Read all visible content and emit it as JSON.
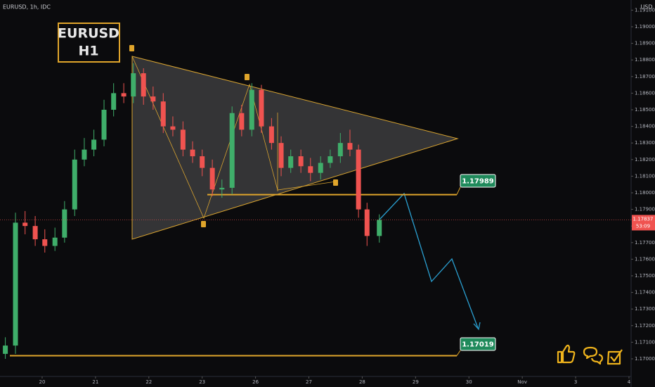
{
  "chart_data": {
    "type": "candlestick",
    "title": "EURUSD, 1h, IDC",
    "currency": "USD",
    "label_box": [
      "EURUSD",
      "H1"
    ],
    "countdown": "53:09",
    "up_color": "#3fae6a",
    "down_color": "#f05350",
    "xlim": [
      -0.79,
      11.04
    ],
    "ylim": [
      1.16894,
      1.19161
    ],
    "xticks": [
      {
        "value": 0,
        "label": "20"
      },
      {
        "value": 1,
        "label": "21"
      },
      {
        "value": 2,
        "label": "22"
      },
      {
        "value": 3,
        "label": "23"
      },
      {
        "value": 4,
        "label": "26"
      },
      {
        "value": 5,
        "label": "27"
      },
      {
        "value": 6,
        "label": "28"
      },
      {
        "value": 7,
        "label": "29"
      },
      {
        "value": 8,
        "label": "30"
      },
      {
        "value": 9,
        "label": "Nov"
      },
      {
        "value": 10,
        "label": "3"
      },
      {
        "value": 11,
        "label": "4"
      }
    ],
    "yticks": [
      {
        "value": 1.191,
        "label": "1.19100"
      },
      {
        "value": 1.19,
        "label": "1.19000"
      },
      {
        "value": 1.189,
        "label": "1.18900"
      },
      {
        "value": 1.188,
        "label": "1.18800"
      },
      {
        "value": 1.187,
        "label": "1.18700"
      },
      {
        "value": 1.186,
        "label": "1.18600"
      },
      {
        "value": 1.185,
        "label": "1.18500"
      },
      {
        "value": 1.184,
        "label": "1.18400"
      },
      {
        "value": 1.183,
        "label": "1.18300"
      },
      {
        "value": 1.182,
        "label": "1.18200"
      },
      {
        "value": 1.181,
        "label": "1.18100"
      },
      {
        "value": 1.18,
        "label": "1.18000"
      },
      {
        "value": 1.179,
        "label": "1.17900"
      },
      {
        "value": 1.178,
        "label": "1.17800"
      },
      {
        "value": 1.177,
        "label": "1.17700"
      },
      {
        "value": 1.176,
        "label": "1.17600"
      },
      {
        "value": 1.175,
        "label": "1.17500"
      },
      {
        "value": 1.174,
        "label": "1.17400"
      },
      {
        "value": 1.173,
        "label": "1.17300"
      },
      {
        "value": 1.172,
        "label": "1.17200"
      },
      {
        "value": 1.171,
        "label": "1.17100"
      },
      {
        "value": 1.17,
        "label": "1.17000"
      }
    ],
    "levels": [
      1.17989,
      1.17019
    ],
    "candles": {
      "x": [
        -0.69,
        -0.5,
        -0.32,
        -0.13,
        0.05,
        0.24,
        0.42,
        0.61,
        0.79,
        0.97,
        1.16,
        1.34,
        1.53,
        1.71,
        1.9,
        2.08,
        2.27,
        2.45,
        2.64,
        2.82,
        3.0,
        3.19,
        3.37,
        3.56,
        3.74,
        3.93,
        4.11,
        4.3,
        4.48,
        4.66,
        4.85,
        5.03,
        5.22,
        5.4,
        5.59,
        5.77,
        5.93,
        6.09,
        6.32
      ],
      "open": [
        1.1703,
        1.1708,
        1.1782,
        1.178,
        1.1772,
        1.1768,
        1.1773,
        1.179,
        1.182,
        1.1826,
        1.1832,
        1.185,
        1.186,
        1.1858,
        1.1872,
        1.1858,
        1.1855,
        1.184,
        1.1838,
        1.1826,
        1.1822,
        1.1815,
        1.1802,
        1.1803,
        1.1848,
        1.1838,
        1.1862,
        1.184,
        1.183,
        1.1815,
        1.1822,
        1.1816,
        1.1812,
        1.1818,
        1.1822,
        1.183,
        1.1826,
        1.179,
        1.1774
      ],
      "high": [
        1.1713,
        1.1788,
        1.1789,
        1.1786,
        1.1778,
        1.1779,
        1.1795,
        1.1826,
        1.1833,
        1.1838,
        1.1856,
        1.1866,
        1.1866,
        1.1878,
        1.1875,
        1.1864,
        1.186,
        1.1846,
        1.1843,
        1.1831,
        1.1826,
        1.182,
        1.1808,
        1.1852,
        1.1853,
        1.1866,
        1.1865,
        1.1845,
        1.1834,
        1.1826,
        1.1826,
        1.1821,
        1.1822,
        1.1826,
        1.1836,
        1.1838,
        1.1829,
        1.1794,
        1.1787
      ],
      "low": [
        1.17,
        1.1703,
        1.1775,
        1.1768,
        1.1764,
        1.1765,
        1.177,
        1.1786,
        1.1816,
        1.1822,
        1.1828,
        1.1846,
        1.1854,
        1.1854,
        1.1853,
        1.185,
        1.1836,
        1.1834,
        1.1822,
        1.1818,
        1.181,
        1.1798,
        1.1797,
        1.1799,
        1.1834,
        1.1834,
        1.1836,
        1.1826,
        1.181,
        1.1812,
        1.1812,
        1.1807,
        1.1808,
        1.1815,
        1.1818,
        1.1822,
        1.1785,
        1.1768,
        1.177
      ],
      "close": [
        1.1708,
        1.1782,
        1.178,
        1.1772,
        1.1768,
        1.1773,
        1.179,
        1.182,
        1.1826,
        1.1832,
        1.185,
        1.186,
        1.1858,
        1.1872,
        1.1858,
        1.1855,
        1.184,
        1.1838,
        1.1826,
        1.1822,
        1.1815,
        1.1802,
        1.1803,
        1.1848,
        1.1838,
        1.1862,
        1.184,
        1.183,
        1.1815,
        1.1822,
        1.1816,
        1.1812,
        1.1818,
        1.1822,
        1.183,
        1.1826,
        1.179,
        1.1774,
        1.17837
      ]
    }
  }
}
